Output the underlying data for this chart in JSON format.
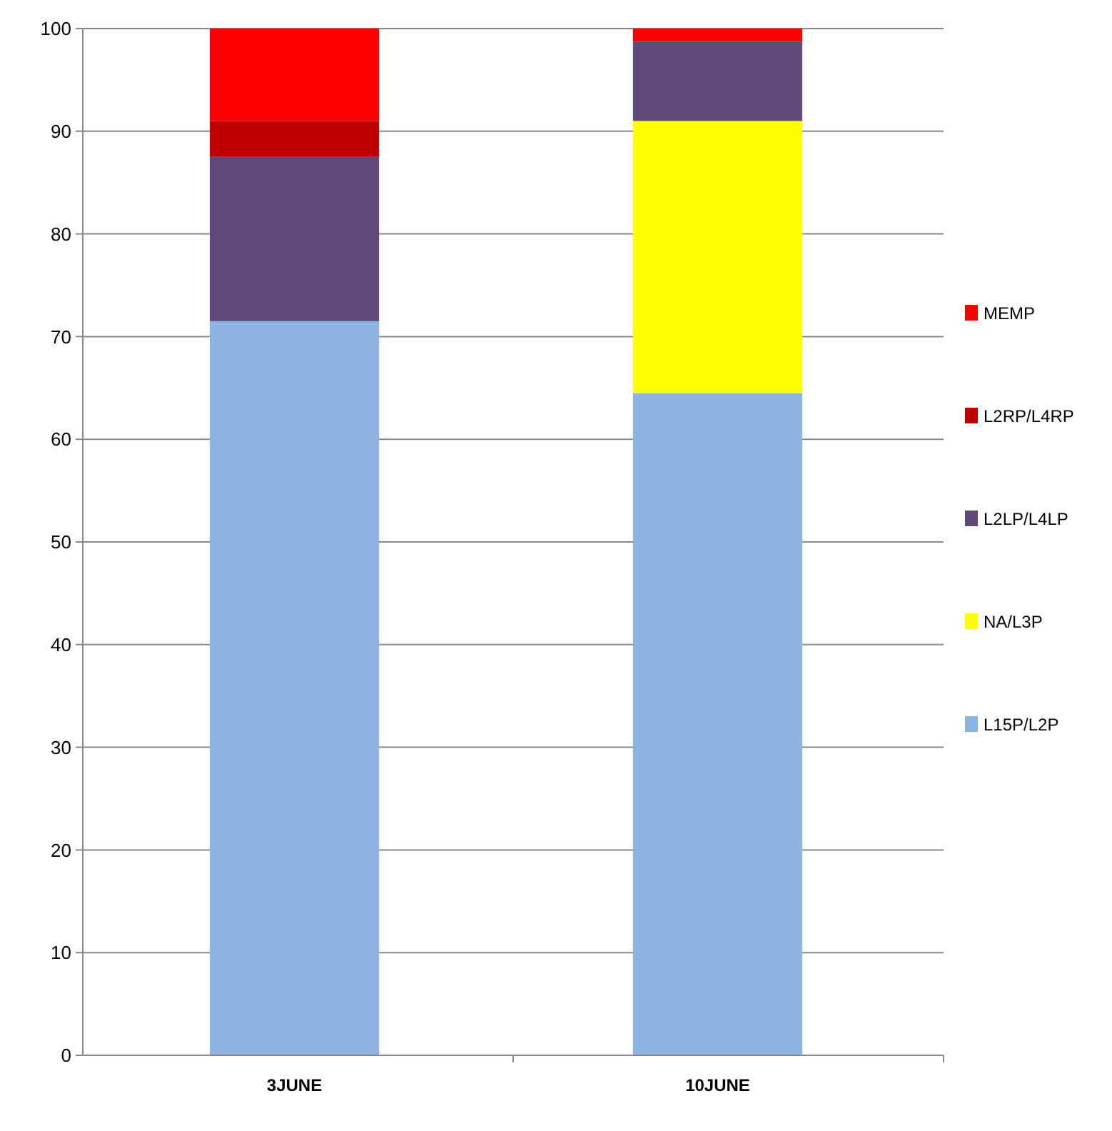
{
  "chart_data": {
    "type": "bar",
    "stacked": true,
    "categories": [
      "3JUNE",
      "10JUNE"
    ],
    "series": [
      {
        "name": "L15P/L2P",
        "color": "#8eb4e3",
        "values": [
          71.5,
          64.5
        ]
      },
      {
        "name": "NA/L3P",
        "color": "#ffff00",
        "values": [
          0,
          26.5
        ]
      },
      {
        "name": "L2LP/L4LP",
        "color": "#604a7b",
        "values": [
          16,
          7.7
        ]
      },
      {
        "name": "L2RP/L4RP",
        "color": "#c00000",
        "values": [
          3.5,
          0
        ]
      },
      {
        "name": "MEMP",
        "color": "#ff0000",
        "values": [
          9,
          1.3
        ]
      }
    ],
    "ylim": [
      0,
      100
    ],
    "yticks": [
      0,
      10,
      20,
      30,
      40,
      50,
      60,
      70,
      80,
      90,
      100
    ],
    "grid": "y",
    "legend": "right"
  }
}
